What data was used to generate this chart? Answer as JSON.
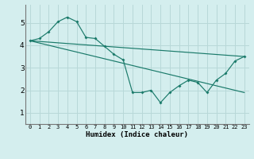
{
  "xlabel": "Humidex (Indice chaleur)",
  "background_color": "#d4eeee",
  "grid_color": "#b8d8d8",
  "line_color": "#1a7a6a",
  "xlim": [
    -0.5,
    23.5
  ],
  "ylim": [
    0.5,
    5.8
  ],
  "yticks": [
    1,
    2,
    3,
    4,
    5
  ],
  "xticks": [
    0,
    1,
    2,
    3,
    4,
    5,
    6,
    7,
    8,
    9,
    10,
    11,
    12,
    13,
    14,
    15,
    16,
    17,
    18,
    19,
    20,
    21,
    22,
    23
  ],
  "line1_x": [
    0,
    23
  ],
  "line1_y": [
    4.2,
    3.5
  ],
  "line2_x": [
    0,
    23
  ],
  "line2_y": [
    4.2,
    1.9
  ],
  "line3_x": [
    0,
    1,
    2,
    3,
    4,
    5,
    6,
    7,
    8,
    9,
    10,
    11,
    12,
    13,
    14,
    15,
    16,
    17,
    18,
    19,
    20,
    21,
    22,
    23
  ],
  "line3_y": [
    4.2,
    4.3,
    4.6,
    5.05,
    5.25,
    5.05,
    4.35,
    4.3,
    3.95,
    3.6,
    3.35,
    1.9,
    1.9,
    2.0,
    1.45,
    1.9,
    2.2,
    2.45,
    2.35,
    1.9,
    2.45,
    2.75,
    3.3,
    3.5
  ]
}
